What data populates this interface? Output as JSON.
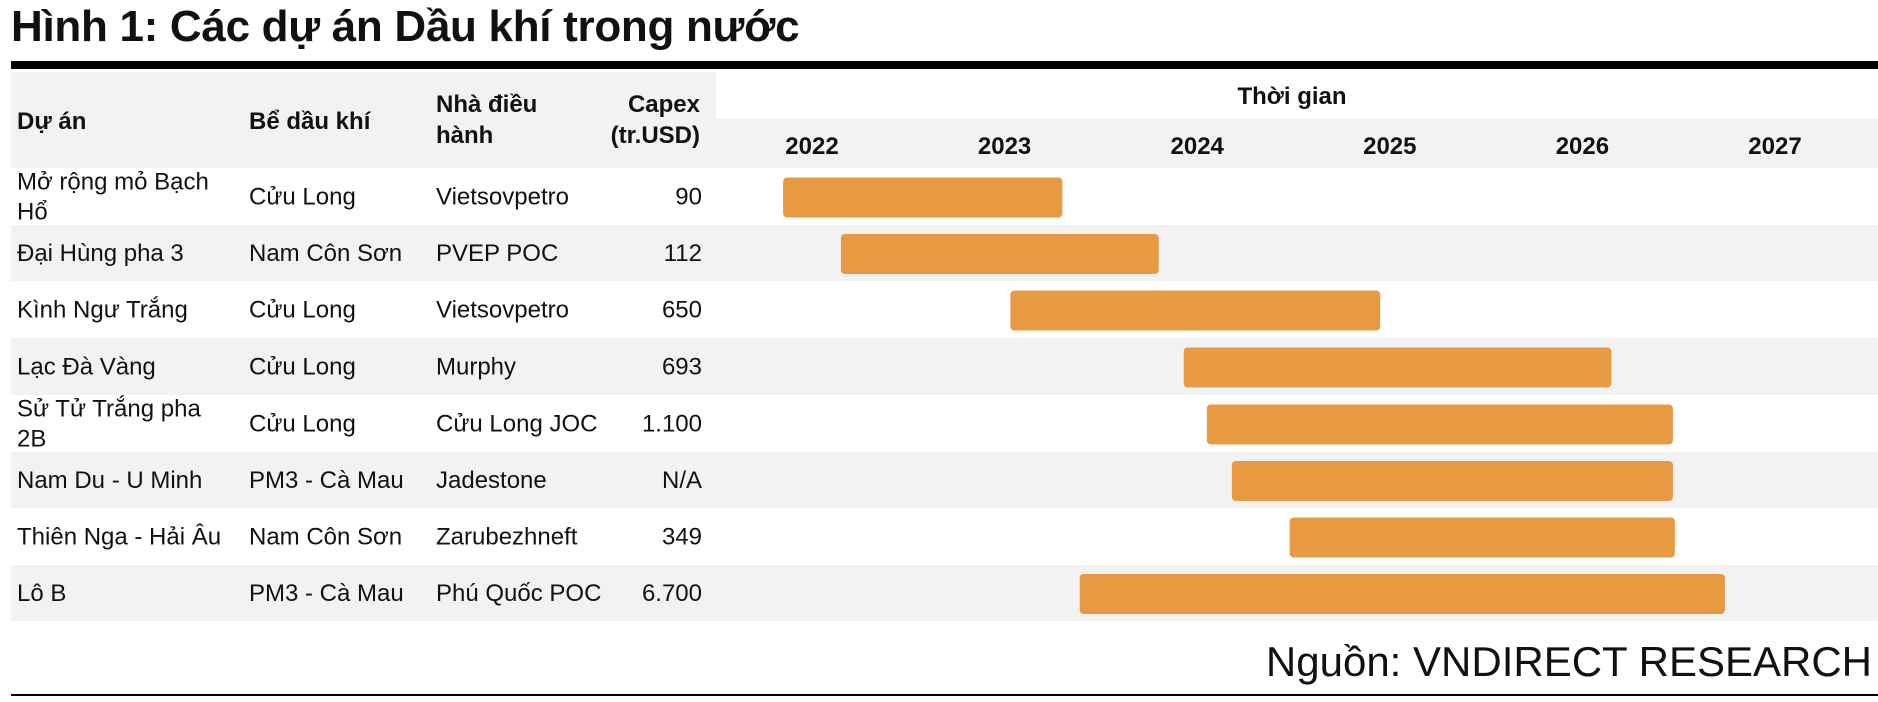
{
  "title": "Hình 1: Các dự án Dầu khí trong nước",
  "source": "Nguồn: VNDIRECT RESEARCH",
  "colors": {
    "bar": "#e89a42",
    "row_band": "#f2f2f2"
  },
  "chart_data": {
    "type": "gantt",
    "columns": {
      "project": "Dự án",
      "basin": "Bể dầu khí",
      "operator": [
        "Nhà điều",
        "hành"
      ],
      "capex": [
        "Capex",
        "(tr.USD)"
      ],
      "timeline": "Thời gian"
    },
    "years": [
      "2022",
      "2023",
      "2024",
      "2025",
      "2026",
      "2027"
    ],
    "rows": [
      {
        "project": [
          "Mở rộng mỏ Bạch",
          "Hổ"
        ],
        "basin": "Cửu Long",
        "operator": "Vietsovpetro",
        "capex": "90",
        "start": 2021.85,
        "end": 2023.3
      },
      {
        "project": [
          "Đại Hùng pha 3"
        ],
        "basin": "Nam Côn Sơn",
        "operator": "PVEP POC",
        "capex": "112",
        "start": 2022.15,
        "end": 2023.8
      },
      {
        "project": [
          "Kình Ngư Trắng"
        ],
        "basin": "Cửu Long",
        "operator": "Vietsovpetro",
        "capex": "650",
        "start": 2023.03,
        "end": 2024.95
      },
      {
        "project": [
          "Lạc Đà Vàng"
        ],
        "basin": "Cửu Long",
        "operator": "Murphy",
        "capex": "693",
        "start": 2023.93,
        "end": 2026.15
      },
      {
        "project": [
          "Sử Tử Trắng pha",
          "2B"
        ],
        "basin": "Cửu Long",
        "operator": "Cửu Long JOC",
        "capex": "1.100",
        "start": 2024.05,
        "end": 2026.47
      },
      {
        "project": [
          "Nam Du - U Minh"
        ],
        "basin": "PM3 - Cà Mau",
        "operator": "Jadestone",
        "capex": "N/A",
        "start": 2024.18,
        "end": 2026.47
      },
      {
        "project": [
          "Thiên Nga - Hải Âu"
        ],
        "basin": "Nam Côn Sơn",
        "operator": "Zarubezhneft",
        "capex": "349",
        "start": 2024.48,
        "end": 2026.48
      },
      {
        "project": [
          "Lô B"
        ],
        "basin": "PM3 - Cà Mau",
        "operator": "Phú Quốc POC",
        "capex": "6.700",
        "start": 2023.39,
        "end": 2026.74
      }
    ]
  }
}
